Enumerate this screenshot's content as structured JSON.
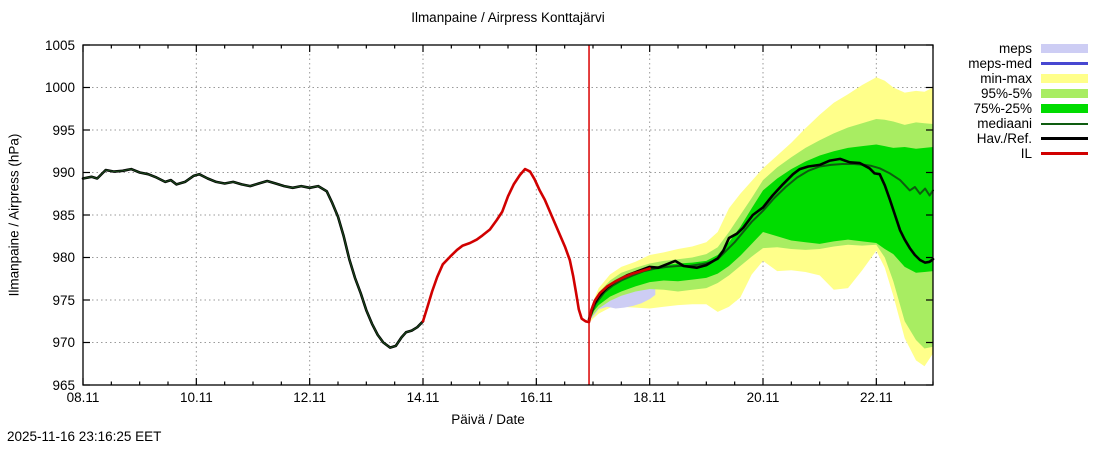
{
  "page_title": "Ilmanpaine / Airpress Konttajärvi",
  "footer": {
    "timestamp": "2025-11-16 23:16:25 EET"
  },
  "chart_data": {
    "type": "line",
    "title": "Ilmanpaine / Airpress Konttajärvi",
    "xlabel": "Päivä / Date",
    "ylabel": "Ilmanpaine / Airpress (hPa)",
    "x_unit": "day of November (x.11)",
    "xlim": [
      8,
      23
    ],
    "ylim": [
      965,
      1005
    ],
    "grid": true,
    "grid_color": "#9a9a9a",
    "x_ticks": [
      {
        "day": 8,
        "label": "08.11"
      },
      {
        "day": 10,
        "label": "10.11"
      },
      {
        "day": 12,
        "label": "12.11"
      },
      {
        "day": 14,
        "label": "14.11"
      },
      {
        "day": 16,
        "label": "16.11"
      },
      {
        "day": 18,
        "label": "18.11"
      },
      {
        "day": 20,
        "label": "20.11"
      },
      {
        "day": 22,
        "label": "22.11"
      }
    ],
    "x_minor_tick_step": 0.5,
    "y_ticks": [
      965,
      970,
      975,
      980,
      985,
      990,
      995,
      1000,
      1005
    ],
    "now_marker": {
      "day": 16.93,
      "color": "#dd1111",
      "note": "forecast start"
    },
    "legend_position": "outside-top-right",
    "legend": [
      {
        "label": "meps",
        "kind": "band",
        "color": "#cdcdf4",
        "thickness": 9
      },
      {
        "label": "meps-med",
        "kind": "line",
        "color": "#4747d1",
        "thickness": 3
      },
      {
        "label": "min-max",
        "kind": "band",
        "color": "#ffff8a",
        "thickness": 9
      },
      {
        "label": "95%-5%",
        "kind": "band",
        "color": "#a8ed62",
        "thickness": 9
      },
      {
        "label": "75%-25%",
        "kind": "band",
        "color": "#00dc00",
        "thickness": 9
      },
      {
        "label": "mediaani",
        "kind": "line",
        "color": "#0e5c10",
        "thickness": 2
      },
      {
        "label": "Hav./Ref.",
        "kind": "line",
        "color": "#000000",
        "thickness": 3
      },
      {
        "label": "IL",
        "kind": "line",
        "color": "#d10000",
        "thickness": 3
      }
    ],
    "bands": [
      {
        "name": "min-max",
        "color": "#ffff8a",
        "x": [
          16.93,
          17.0,
          17.1,
          17.3,
          17.5,
          17.75,
          18.0,
          18.25,
          18.5,
          18.75,
          19.0,
          19.2,
          19.4,
          19.6,
          19.8,
          20.0,
          20.25,
          20.5,
          20.75,
          21.0,
          21.25,
          21.5,
          21.75,
          22.0,
          22.15,
          22.3,
          22.5,
          22.7,
          22.85,
          23.0
        ],
        "upper": [
          973.2,
          974.8,
          976.4,
          978.0,
          978.9,
          979.5,
          980.3,
          980.6,
          981.0,
          981.3,
          981.8,
          983.0,
          985.8,
          987.5,
          989.0,
          990.5,
          992.0,
          993.5,
          995.2,
          996.8,
          998.2,
          999.2,
          1000.3,
          1001.2,
          1000.8,
          1000.0,
          999.4,
          999.6,
          999.5,
          1000.0
        ],
        "lower": [
          972.3,
          972.8,
          973.4,
          974.1,
          974.2,
          974.1,
          974.0,
          974.2,
          974.4,
          974.5,
          974.5,
          973.6,
          974.2,
          975.3,
          978.0,
          979.6,
          978.4,
          978.5,
          978.3,
          977.9,
          976.2,
          976.4,
          978.5,
          980.8,
          978.8,
          975.5,
          970.5,
          967.9,
          967.2,
          968.7
        ]
      },
      {
        "name": "meps",
        "color": "#cdcdf4",
        "x": [
          16.93,
          17.0,
          17.1,
          17.25,
          17.4,
          17.55,
          17.7,
          17.85,
          18.0,
          18.1
        ],
        "upper": [
          972.8,
          973.8,
          975.0,
          975.8,
          976.2,
          976.5,
          976.8,
          977.1,
          977.4,
          977.6
        ],
        "lower": [
          972.5,
          973.0,
          973.9,
          974.2,
          974.0,
          974.1,
          974.3,
          974.6,
          975.1,
          975.6
        ]
      },
      {
        "name": "95%-5%",
        "color": "#a8ed62",
        "x": [
          16.93,
          17.0,
          17.1,
          17.3,
          17.5,
          17.75,
          18.0,
          18.25,
          18.5,
          18.75,
          19.0,
          19.2,
          19.4,
          19.6,
          19.8,
          20.0,
          20.25,
          20.5,
          20.75,
          21.0,
          21.25,
          21.5,
          21.75,
          22.0,
          22.15,
          22.3,
          22.5,
          22.7,
          22.85,
          23.0
        ],
        "upper": [
          973.1,
          974.5,
          975.9,
          977.3,
          978.2,
          978.8,
          979.3,
          979.6,
          979.8,
          980.0,
          980.4,
          981.2,
          983.0,
          985.0,
          987.0,
          989.1,
          990.6,
          991.8,
          992.9,
          993.8,
          994.6,
          995.3,
          995.8,
          996.3,
          996.2,
          996.0,
          995.6,
          995.9,
          995.8,
          995.7
        ],
        "lower": [
          972.5,
          973.2,
          974.0,
          974.9,
          975.5,
          976.0,
          976.3,
          976.2,
          976.0,
          976.2,
          976.4,
          977.0,
          977.9,
          979.0,
          980.1,
          981.1,
          981.2,
          981.0,
          980.9,
          981.0,
          981.3,
          981.5,
          981.4,
          981.5,
          980.0,
          977.2,
          972.5,
          970.3,
          969.3,
          969.5
        ]
      },
      {
        "name": "75%-25%",
        "color": "#00dc00",
        "x": [
          16.93,
          17.0,
          17.1,
          17.3,
          17.5,
          17.75,
          18.0,
          18.25,
          18.5,
          18.75,
          19.0,
          19.2,
          19.4,
          19.6,
          19.8,
          20.0,
          20.25,
          20.5,
          20.75,
          21.0,
          21.25,
          21.5,
          21.75,
          22.0,
          22.15,
          22.3,
          22.5,
          22.7,
          22.85,
          23.0
        ],
        "upper": [
          973.0,
          974.3,
          975.5,
          976.9,
          977.7,
          978.3,
          978.8,
          979.1,
          979.3,
          979.4,
          979.6,
          980.3,
          981.8,
          983.6,
          985.8,
          987.9,
          989.3,
          990.4,
          991.3,
          992.0,
          992.5,
          992.9,
          993.1,
          993.3,
          993.1,
          992.9,
          993.0,
          992.8,
          992.9,
          993.0
        ],
        "lower": [
          972.6,
          973.6,
          974.4,
          975.4,
          976.0,
          976.6,
          977.1,
          977.3,
          977.2,
          977.4,
          977.6,
          978.1,
          979.0,
          980.2,
          981.6,
          983.0,
          982.5,
          982.0,
          981.8,
          981.6,
          981.9,
          982.1,
          981.9,
          981.7,
          981.0,
          980.4,
          978.9,
          978.2,
          978.3,
          978.4
        ]
      }
    ],
    "lines": [
      {
        "name": "mediaani",
        "color": "#0e5c10",
        "width": 2,
        "points": [
          [
            16.93,
            972.6
          ],
          [
            17.05,
            974.6
          ],
          [
            17.2,
            975.9
          ],
          [
            17.35,
            976.7
          ],
          [
            17.5,
            977.3
          ],
          [
            17.7,
            977.9
          ],
          [
            17.9,
            978.4
          ],
          [
            18.1,
            978.7
          ],
          [
            18.3,
            978.9
          ],
          [
            18.5,
            979.0
          ],
          [
            18.7,
            979.0
          ],
          [
            18.9,
            979.2
          ],
          [
            19.05,
            979.4
          ],
          [
            19.2,
            979.8
          ],
          [
            19.35,
            980.8
          ],
          [
            19.5,
            981.8
          ],
          [
            19.65,
            983.0
          ],
          [
            19.8,
            984.2
          ],
          [
            20.0,
            985.5
          ],
          [
            20.2,
            987.0
          ],
          [
            20.4,
            988.3
          ],
          [
            20.6,
            989.4
          ],
          [
            20.8,
            990.2
          ],
          [
            21.0,
            990.7
          ],
          [
            21.2,
            990.9
          ],
          [
            21.4,
            991.0
          ],
          [
            21.6,
            991.0
          ],
          [
            21.8,
            990.9
          ],
          [
            21.9,
            990.8
          ],
          [
            22.06,
            990.5
          ],
          [
            22.24,
            989.9
          ],
          [
            22.42,
            989.1
          ],
          [
            22.59,
            987.9
          ],
          [
            22.68,
            988.3
          ],
          [
            22.77,
            987.5
          ],
          [
            22.86,
            988.1
          ],
          [
            22.94,
            987.3
          ],
          [
            23.0,
            987.9
          ]
        ]
      },
      {
        "name": "Hav./Ref. observed",
        "color": "#000000",
        "width": 2.6,
        "core_color": "#1c4a1c",
        "core_width": 1.1,
        "points": [
          [
            8.0,
            989.3
          ],
          [
            8.15,
            989.5
          ],
          [
            8.25,
            989.3
          ],
          [
            8.4,
            990.3
          ],
          [
            8.55,
            990.1
          ],
          [
            8.7,
            990.2
          ],
          [
            8.85,
            990.4
          ],
          [
            9.0,
            990.0
          ],
          [
            9.15,
            989.8
          ],
          [
            9.3,
            989.4
          ],
          [
            9.45,
            988.9
          ],
          [
            9.55,
            989.1
          ],
          [
            9.65,
            988.6
          ],
          [
            9.8,
            988.9
          ],
          [
            9.95,
            989.6
          ],
          [
            10.05,
            989.8
          ],
          [
            10.2,
            989.3
          ],
          [
            10.35,
            988.9
          ],
          [
            10.5,
            988.7
          ],
          [
            10.65,
            988.9
          ],
          [
            10.8,
            988.6
          ],
          [
            10.95,
            988.4
          ],
          [
            11.1,
            988.7
          ],
          [
            11.25,
            989.0
          ],
          [
            11.4,
            988.7
          ],
          [
            11.55,
            988.4
          ],
          [
            11.7,
            988.2
          ],
          [
            11.85,
            988.4
          ],
          [
            12.0,
            988.2
          ],
          [
            12.15,
            988.4
          ],
          [
            12.3,
            987.8
          ],
          [
            12.4,
            986.4
          ],
          [
            12.5,
            984.8
          ],
          [
            12.6,
            982.5
          ],
          [
            12.7,
            979.8
          ],
          [
            12.8,
            977.6
          ],
          [
            12.9,
            975.8
          ],
          [
            13.0,
            973.8
          ],
          [
            13.1,
            972.2
          ],
          [
            13.2,
            970.9
          ],
          [
            13.3,
            970.0
          ],
          [
            13.42,
            969.4
          ],
          [
            13.52,
            969.6
          ],
          [
            13.62,
            970.6
          ],
          [
            13.7,
            971.2
          ],
          [
            13.8,
            971.4
          ],
          [
            13.9,
            971.8
          ],
          [
            14.0,
            972.5
          ]
        ]
      },
      {
        "name": "Hav./Ref. forecast",
        "color": "#000000",
        "width": 2.6,
        "points": [
          [
            16.93,
            972.7
          ],
          [
            17.0,
            974.3
          ],
          [
            17.1,
            975.4
          ],
          [
            17.25,
            976.5
          ],
          [
            17.4,
            977.2
          ],
          [
            17.6,
            977.9
          ],
          [
            17.8,
            978.4
          ],
          [
            18.0,
            978.9
          ],
          [
            18.15,
            978.8
          ],
          [
            18.3,
            979.2
          ],
          [
            18.45,
            979.6
          ],
          [
            18.6,
            979.0
          ],
          [
            18.83,
            978.8
          ],
          [
            19.0,
            979.1
          ],
          [
            19.2,
            979.9
          ],
          [
            19.3,
            980.8
          ],
          [
            19.4,
            982.3
          ],
          [
            19.54,
            982.8
          ],
          [
            19.65,
            983.5
          ],
          [
            19.82,
            985.0
          ],
          [
            20.0,
            985.9
          ],
          [
            20.17,
            987.3
          ],
          [
            20.35,
            988.6
          ],
          [
            20.53,
            989.8
          ],
          [
            20.65,
            990.4
          ],
          [
            20.8,
            990.7
          ],
          [
            21.0,
            990.9
          ],
          [
            21.18,
            991.4
          ],
          [
            21.36,
            991.6
          ],
          [
            21.53,
            991.2
          ],
          [
            21.71,
            991.1
          ],
          [
            21.88,
            990.5
          ],
          [
            21.97,
            989.9
          ],
          [
            22.06,
            989.8
          ],
          [
            22.15,
            988.5
          ],
          [
            22.24,
            986.8
          ],
          [
            22.33,
            985.0
          ],
          [
            22.42,
            983.2
          ],
          [
            22.5,
            982.1
          ],
          [
            22.59,
            981.1
          ],
          [
            22.68,
            980.3
          ],
          [
            22.77,
            979.7
          ],
          [
            22.86,
            979.4
          ],
          [
            22.94,
            979.5
          ],
          [
            23.0,
            979.8
          ]
        ]
      },
      {
        "name": "IL",
        "color": "#d10000",
        "width": 2.6,
        "points": [
          [
            14.0,
            972.5
          ],
          [
            14.08,
            974.2
          ],
          [
            14.16,
            976.0
          ],
          [
            14.25,
            977.7
          ],
          [
            14.35,
            979.2
          ],
          [
            14.48,
            980.1
          ],
          [
            14.6,
            980.9
          ],
          [
            14.7,
            981.4
          ],
          [
            14.83,
            981.7
          ],
          [
            14.95,
            982.1
          ],
          [
            15.05,
            982.6
          ],
          [
            15.18,
            983.3
          ],
          [
            15.3,
            984.4
          ],
          [
            15.4,
            985.4
          ],
          [
            15.5,
            987.2
          ],
          [
            15.6,
            988.6
          ],
          [
            15.71,
            989.7
          ],
          [
            15.8,
            990.4
          ],
          [
            15.89,
            990.1
          ],
          [
            15.97,
            989.2
          ],
          [
            16.06,
            987.9
          ],
          [
            16.15,
            986.8
          ],
          [
            16.24,
            985.4
          ],
          [
            16.33,
            984.0
          ],
          [
            16.42,
            982.6
          ],
          [
            16.51,
            981.2
          ],
          [
            16.59,
            979.7
          ],
          [
            16.65,
            977.8
          ],
          [
            16.7,
            975.9
          ],
          [
            16.75,
            973.9
          ],
          [
            16.8,
            972.8
          ],
          [
            16.87,
            972.5
          ],
          [
            16.93,
            972.4
          ],
          [
            16.97,
            973.8
          ],
          [
            17.03,
            974.9
          ],
          [
            17.12,
            975.8
          ],
          [
            17.25,
            976.6
          ],
          [
            17.4,
            977.2
          ],
          [
            17.55,
            977.7
          ],
          [
            17.7,
            978.1
          ],
          [
            17.85,
            978.4
          ],
          [
            18.0,
            978.7
          ]
        ]
      }
    ]
  }
}
